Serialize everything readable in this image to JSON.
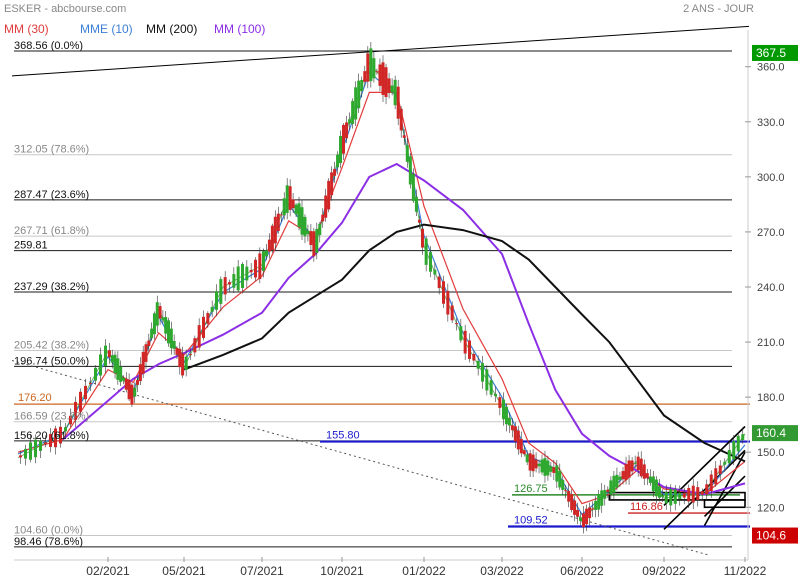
{
  "header": {
    "title": "ESKER - abcbourse.com",
    "period": "2 ANS - JOUR"
  },
  "chart_data": {
    "type": "line",
    "title": "ESKER",
    "ylim": [
      94,
      380
    ],
    "y_ticks": [
      "360.0",
      "330.0",
      "300.0",
      "270.0",
      "240.0",
      "210.0",
      "180.0",
      "150.0",
      "120.0"
    ],
    "x_ticks": [
      "02/2021",
      "05/2021",
      "07/2021",
      "10/2021",
      "01/2022",
      "03/2022",
      "06/2022",
      "09/2022",
      "11/2022"
    ],
    "last_price": "160.4",
    "last_price_color": "#339933",
    "marker_low": "104.6",
    "marker_low_color": "#cc0000",
    "marker_high": "367.5",
    "marker_high_color": "#009900",
    "legend": [
      {
        "name": "MM (30)",
        "color": "#e23b3b"
      },
      {
        "name": "MME (10)",
        "color": "#3b7fd6"
      },
      {
        "name": "MM (200)",
        "color": "#111111"
      },
      {
        "name": "MM (100)",
        "color": "#8b2ee6"
      }
    ],
    "fib_levels": [
      {
        "label": "368.56  (0.0%)",
        "value": 368.56,
        "color": "#000000"
      },
      {
        "label": "312.05  (78.6%)",
        "value": 312.05,
        "color": "#999999"
      },
      {
        "label": "287.47  (23.6%)",
        "value": 287.47,
        "color": "#000000"
      },
      {
        "label": "267.71  (61.8%)",
        "value": 267.71,
        "color": "#999999"
      },
      {
        "label": "259.81",
        "value": 259.81,
        "color": "#000000"
      },
      {
        "label": "237.29  (38.2%)",
        "value": 237.29,
        "color": "#000000"
      },
      {
        "label": "205.42  (38.2%)",
        "value": 205.42,
        "color": "#999999"
      },
      {
        "label": "196.74  (50.0%)",
        "value": 196.74,
        "color": "#000000"
      },
      {
        "label": "166.59  (23.6%)",
        "value": 166.59,
        "color": "#999999"
      },
      {
        "label": "156.20  (61.8%)",
        "value": 156.2,
        "color": "#000000"
      },
      {
        "label": "104.60  (0.0%)",
        "value": 104.6,
        "color": "#999999"
      },
      {
        "label": "98.46  (78.6%)",
        "value": 98.46,
        "color": "#000000"
      }
    ],
    "level_lines": [
      {
        "label": "176.20",
        "value": 176.2,
        "color": "#cc6622"
      },
      {
        "label": "155.80",
        "value": 155.8,
        "color": "#1a1acc"
      },
      {
        "label": "126.75",
        "value": 126.75,
        "color": "#2a8a2a"
      },
      {
        "label": "116.86",
        "value": 116.86,
        "color": "#cc2222"
      },
      {
        "label": "109.52",
        "value": 109.52,
        "color": "#1a1acc"
      }
    ],
    "price_series": [
      [
        "12/2020",
        147
      ],
      [
        "01/2021",
        160
      ],
      [
        "02/2021",
        205
      ],
      [
        "03/2021",
        180
      ],
      [
        "04/2021",
        228
      ],
      [
        "05/2021",
        196
      ],
      [
        "06/2021",
        240
      ],
      [
        "07/2021",
        252
      ],
      [
        "08/2021",
        290
      ],
      [
        "09/2021",
        262
      ],
      [
        "10/2021",
        318
      ],
      [
        "11/2021",
        362
      ],
      [
        "12/2021",
        345
      ],
      [
        "01/2022",
        262
      ],
      [
        "02/2022",
        212
      ],
      [
        "03/2022",
        175
      ],
      [
        "04/2022",
        145
      ],
      [
        "05/2022",
        140
      ],
      [
        "06/2022",
        112
      ],
      [
        "07/2022",
        130
      ],
      [
        "08/2022",
        145
      ],
      [
        "09/2022",
        125
      ],
      [
        "10/2022",
        128
      ],
      [
        "11/2022",
        160
      ]
    ],
    "ma_series": [
      {
        "name": "MME (10)",
        "color": "#3b7fd6",
        "points": [
          [
            "12/2020",
            149
          ],
          [
            "01/2021",
            160
          ],
          [
            "02/2021",
            202
          ],
          [
            "03/2021",
            183
          ],
          [
            "04/2021",
            224
          ],
          [
            "05/2021",
            199
          ],
          [
            "06/2021",
            237
          ],
          [
            "07/2021",
            250
          ],
          [
            "08/2021",
            285
          ],
          [
            "09/2021",
            265
          ],
          [
            "10/2021",
            314
          ],
          [
            "11/2021",
            357
          ],
          [
            "12/2021",
            344
          ],
          [
            "01/2022",
            268
          ],
          [
            "02/2022",
            215
          ],
          [
            "03/2022",
            180
          ],
          [
            "04/2022",
            148
          ],
          [
            "05/2022",
            141
          ],
          [
            "06/2022",
            116
          ],
          [
            "07/2022",
            129
          ],
          [
            "08/2022",
            143
          ],
          [
            "09/2022",
            127
          ],
          [
            "10/2022",
            127
          ],
          [
            "11/2022",
            154
          ]
        ]
      },
      {
        "name": "MM (30)",
        "color": "#e23b3b",
        "points": [
          [
            "12/2020",
            150
          ],
          [
            "01/2021",
            157
          ],
          [
            "02/2021",
            195
          ],
          [
            "03/2021",
            188
          ],
          [
            "04/2021",
            215
          ],
          [
            "05/2021",
            203
          ],
          [
            "06/2021",
            229
          ],
          [
            "07/2021",
            246
          ],
          [
            "08/2021",
            276
          ],
          [
            "09/2021",
            267
          ],
          [
            "10/2021",
            305
          ],
          [
            "11/2021",
            346
          ],
          [
            "12/2021",
            346
          ],
          [
            "01/2022",
            284
          ],
          [
            "02/2022",
            228
          ],
          [
            "03/2022",
            190
          ],
          [
            "04/2022",
            155
          ],
          [
            "05/2022",
            144
          ],
          [
            "06/2022",
            122
          ],
          [
            "07/2022",
            127
          ],
          [
            "08/2022",
            140
          ],
          [
            "09/2022",
            130
          ],
          [
            "10/2022",
            127
          ],
          [
            "11/2022",
            145
          ]
        ]
      },
      {
        "name": "MM (100)",
        "color": "#8b2ee6",
        "points": [
          [
            "01/2021",
            157
          ],
          [
            "02/2021",
            178
          ],
          [
            "03/2021",
            190
          ],
          [
            "04/2021",
            198
          ],
          [
            "05/2021",
            204
          ],
          [
            "06/2021",
            214
          ],
          [
            "07/2021",
            226
          ],
          [
            "08/2021",
            245
          ],
          [
            "09/2021",
            258
          ],
          [
            "10/2021",
            275
          ],
          [
            "11/2021",
            300
          ],
          [
            "12/2021",
            307
          ],
          [
            "01/2022",
            298
          ],
          [
            "02/2022",
            282
          ],
          [
            "03/2022",
            258
          ],
          [
            "04/2022",
            220
          ],
          [
            "05/2022",
            184
          ],
          [
            "06/2022",
            160
          ],
          [
            "07/2022",
            148
          ],
          [
            "08/2022",
            140
          ],
          [
            "09/2022",
            131
          ],
          [
            "10/2022",
            127
          ],
          [
            "11/2022",
            133
          ]
        ]
      },
      {
        "name": "MM (200)",
        "color": "#111111",
        "points": [
          [
            "05/2021",
            195
          ],
          [
            "06/2021",
            203
          ],
          [
            "07/2021",
            212
          ],
          [
            "08/2021",
            226
          ],
          [
            "09/2021",
            235
          ],
          [
            "10/2021",
            244
          ],
          [
            "11/2021",
            260
          ],
          [
            "12/2021",
            270
          ],
          [
            "01/2022",
            274
          ],
          [
            "02/2022",
            271
          ],
          [
            "03/2022",
            265
          ],
          [
            "04/2022",
            255
          ],
          [
            "05/2022",
            240
          ],
          [
            "06/2022",
            225
          ],
          [
            "07/2022",
            210
          ],
          [
            "08/2022",
            190
          ],
          [
            "09/2022",
            170
          ],
          [
            "10/2022",
            155
          ],
          [
            "11/2022",
            145
          ]
        ]
      }
    ],
    "trend_lines": [
      {
        "from": [
          "12/2020",
          355
        ],
        "to": [
          "11/2022",
          382
        ],
        "color": "#000000"
      },
      {
        "from": [
          "12/2020",
          200
        ],
        "to": [
          "10/2022",
          94
        ],
        "color": "#555555",
        "dashed": true
      }
    ],
    "channel_lines": [
      {
        "from": [
          "09/2022",
          108
        ],
        "to": [
          "11/2022",
          151
        ]
      },
      {
        "from": [
          "09/2022",
          121
        ],
        "to": [
          "11/2022",
          164
        ]
      },
      {
        "from": [
          "10/2022",
          110
        ],
        "to": [
          "11/2022",
          150
        ]
      },
      {
        "from": [
          "10/2022",
          115
        ],
        "to": [
          "11/2022",
          137
        ]
      }
    ],
    "boxes": [
      {
        "from": [
          "07/2022",
          128
        ],
        "to": [
          "11/2022",
          124
        ]
      },
      {
        "from": [
          "10/2022",
          124
        ],
        "to": [
          "11/2022",
          120
        ]
      }
    ]
  }
}
